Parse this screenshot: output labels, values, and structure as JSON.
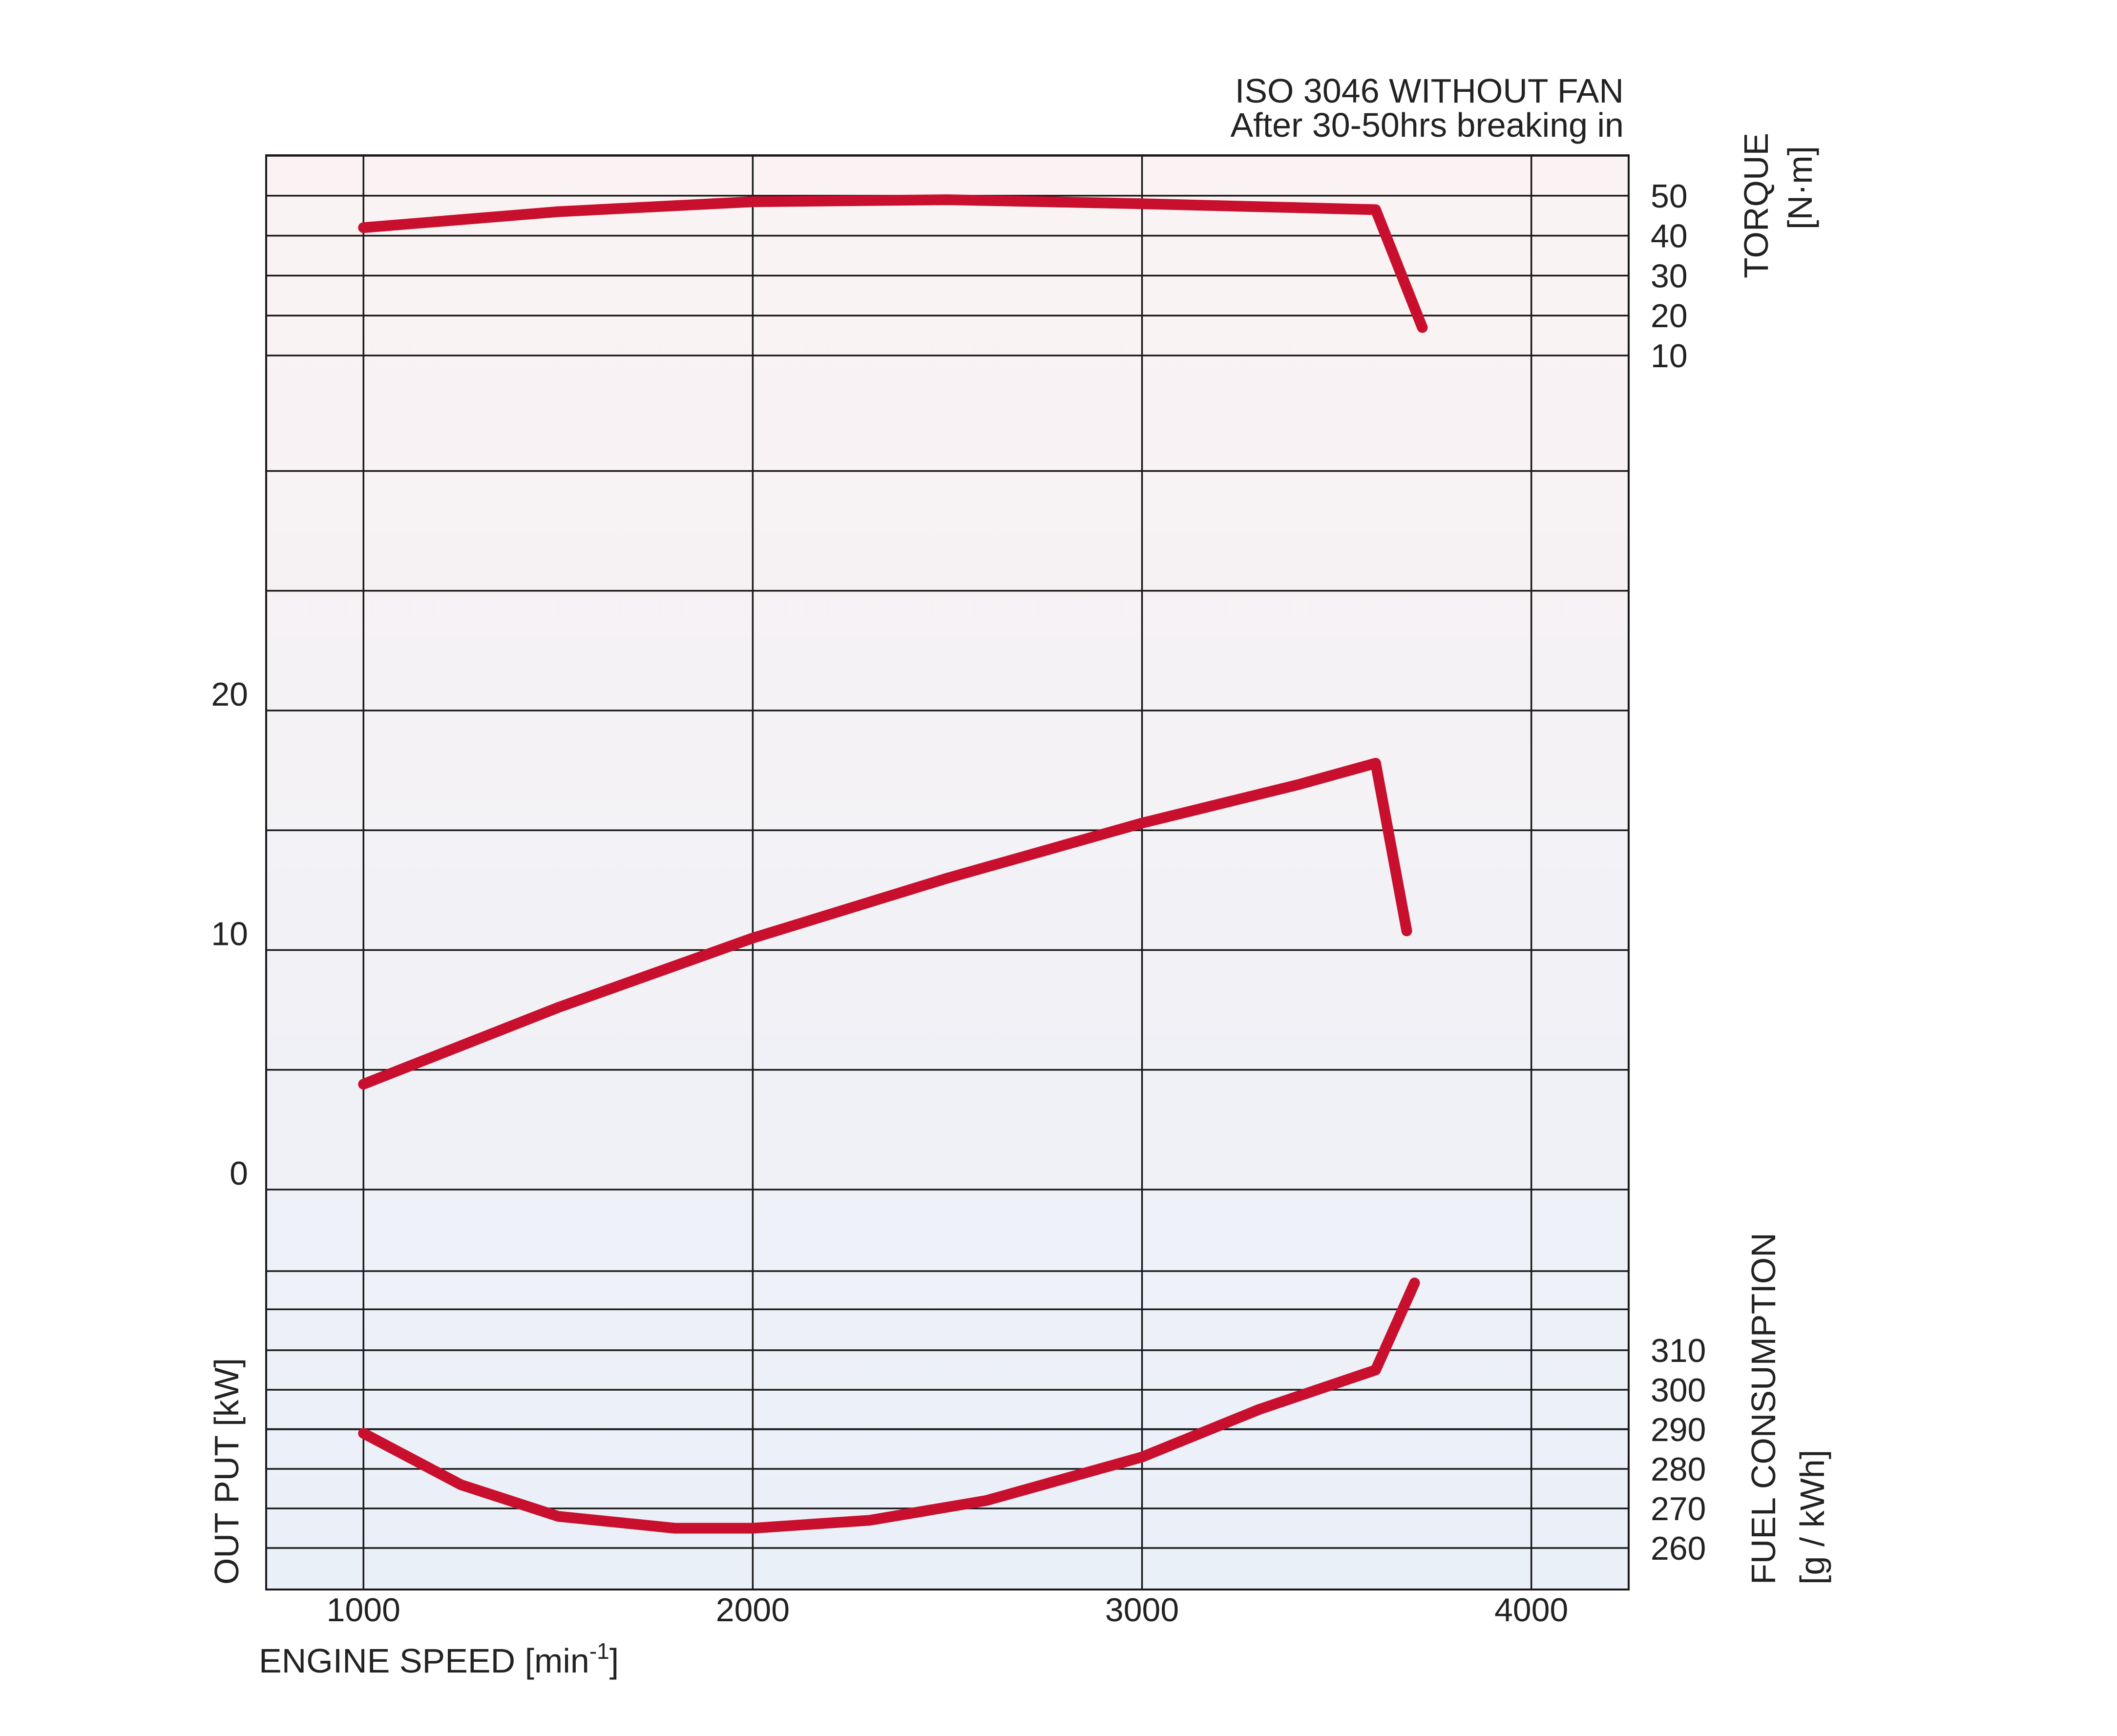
{
  "chart_data": {
    "type": "line",
    "title_lines": [
      "ISO 3046 WITHOUT FAN",
      "After 30-50hrs breaking in"
    ],
    "x_axis": {
      "label_main": "ENGINE SPEED [min",
      "label_sup": "-1",
      "label_end": "]",
      "ticks": [
        1000,
        2000,
        3000,
        4000
      ],
      "range": [
        750,
        4250
      ]
    },
    "output_axis": {
      "label": "OUT PUT [kW]",
      "ticks": [
        0,
        10,
        20
      ],
      "grid": [
        -10,
        -5,
        0,
        5,
        10,
        15,
        20,
        25,
        30
      ]
    },
    "torque_axis": {
      "label_line1": "TORQUE",
      "label_line2": "[N·m]",
      "ticks": [
        10,
        20,
        30,
        40,
        50
      ],
      "grid": [
        10,
        20,
        30,
        40,
        50,
        60
      ]
    },
    "fuel_axis": {
      "label_line1": "FUEL CONSUMPTION",
      "label_line2": "[g / kWh]",
      "ticks": [
        260,
        270,
        280,
        290,
        300,
        310
      ],
      "grid": [
        260,
        270,
        280,
        290,
        300,
        310,
        330
      ]
    },
    "series": [
      {
        "axis": "torque",
        "color": "#c8102e",
        "points": [
          [
            1000,
            42
          ],
          [
            1500,
            46
          ],
          [
            2000,
            48.5
          ],
          [
            2500,
            49
          ],
          [
            3000,
            48
          ],
          [
            3400,
            47
          ],
          [
            3600,
            46.5
          ],
          [
            3720,
            17
          ]
        ]
      },
      {
        "axis": "output",
        "color": "#c8102e",
        "points": [
          [
            1000,
            4.4
          ],
          [
            1500,
            7.6
          ],
          [
            2000,
            10.5
          ],
          [
            2500,
            13
          ],
          [
            3000,
            15.3
          ],
          [
            3400,
            16.9
          ],
          [
            3600,
            17.8
          ],
          [
            3680,
            10.8
          ]
        ]
      },
      {
        "axis": "fuel",
        "color": "#c8102e",
        "points": [
          [
            1000,
            289
          ],
          [
            1250,
            276
          ],
          [
            1500,
            268
          ],
          [
            1800,
            265
          ],
          [
            2000,
            265
          ],
          [
            2300,
            267
          ],
          [
            2600,
            272
          ],
          [
            3000,
            283
          ],
          [
            3300,
            295
          ],
          [
            3600,
            305
          ],
          [
            3700,
            327
          ]
        ]
      }
    ],
    "grid": true
  }
}
